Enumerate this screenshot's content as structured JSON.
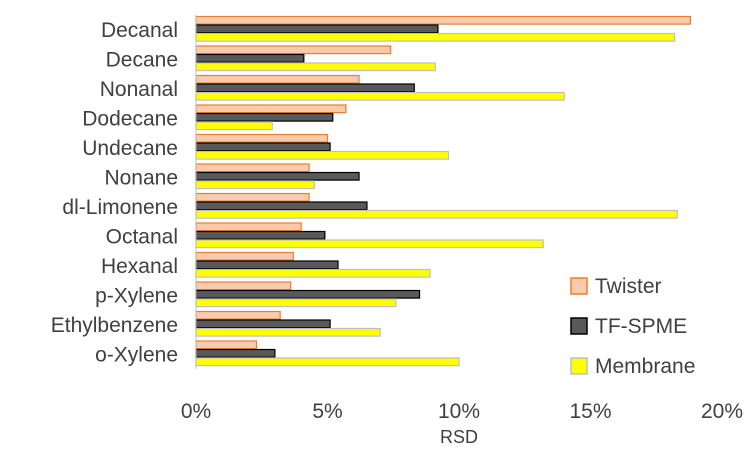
{
  "chart_data": {
    "type": "bar",
    "orientation": "horizontal",
    "categories": [
      "Decanal",
      "Decane",
      "Nonanal",
      "Dodecane",
      "Undecane",
      "Nonane",
      "dl-Limonene",
      "Octanal",
      "Hexanal",
      "p-Xylene",
      "Ethylbenzene",
      "o-Xylene"
    ],
    "series": [
      {
        "name": "Twister",
        "color": "#f8cbad",
        "stroke": "#ed7d31",
        "values": [
          18.8,
          7.4,
          6.2,
          5.7,
          5.0,
          4.3,
          4.3,
          4.0,
          3.7,
          3.6,
          3.2,
          2.3
        ]
      },
      {
        "name": "TF-SPME",
        "color": "#595959",
        "stroke": "#000000",
        "values": [
          9.2,
          4.1,
          8.3,
          5.2,
          5.1,
          6.2,
          6.5,
          4.9,
          5.4,
          8.5,
          5.1,
          3.0
        ]
      },
      {
        "name": "Membrane",
        "color": "#ffff00",
        "stroke": "#bfbfbf",
        "values": [
          18.2,
          9.1,
          14.0,
          2.9,
          9.6,
          4.5,
          18.3,
          13.2,
          8.9,
          7.6,
          7.0,
          10.0
        ]
      }
    ],
    "xlabel": "RSD",
    "ylabel": "",
    "xlim": [
      0,
      20
    ],
    "x_ticks": [
      "0%",
      "5%",
      "10%",
      "15%",
      "20%"
    ],
    "legend_position": "bottom-right",
    "grid": false
  }
}
